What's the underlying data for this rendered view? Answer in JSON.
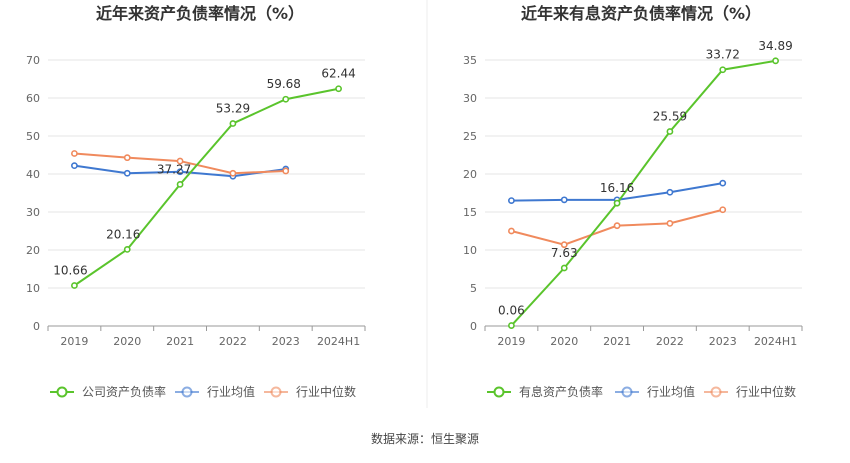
{
  "source": "数据来源：恒生聚源",
  "colors": {
    "primary": "#5ac42c",
    "average": "#3f78d0",
    "median": "#f08a5d",
    "grid": "#e6e6e6",
    "axis": "#999999"
  },
  "chart_data": [
    {
      "type": "line",
      "title": "近年来资产负债率情况（%）",
      "categories": [
        "2019",
        "2020",
        "2021",
        "2022",
        "2023",
        "2024H1"
      ],
      "ylim": [
        0,
        70
      ],
      "yticks": [
        "0",
        "10",
        "20",
        "30",
        "40",
        "50",
        "60",
        "70"
      ],
      "grid": true,
      "legend": "bottom",
      "series": [
        {
          "name": "公司资产负债率",
          "values": [
            10.66,
            20.16,
            37.27,
            53.29,
            59.68,
            62.44
          ],
          "labels": [
            "10.66",
            "20.16",
            "37.27",
            "53.29",
            "59.68",
            "62.44"
          ],
          "key": "primary"
        },
        {
          "name": "行业均值",
          "values": [
            42.2,
            40.2,
            40.6,
            39.4,
            41.3,
            null
          ],
          "key": "average"
        },
        {
          "name": "行业中位数",
          "values": [
            45.4,
            44.3,
            43.4,
            40.2,
            40.8,
            null
          ],
          "key": "median"
        }
      ]
    },
    {
      "type": "line",
      "title": "近年来有息资产负债率情况（%）",
      "categories": [
        "2019",
        "2020",
        "2021",
        "2022",
        "2023",
        "2024H1"
      ],
      "ylim": [
        0,
        35
      ],
      "yticks": [
        "0",
        "5",
        "10",
        "15",
        "20",
        "25",
        "30",
        "35"
      ],
      "grid": true,
      "legend": "bottom",
      "series": [
        {
          "name": "有息资产负债率",
          "values": [
            0.06,
            7.63,
            16.16,
            25.59,
            33.72,
            34.89
          ],
          "labels": [
            "0.06",
            "7.63",
            "16.16",
            "25.59",
            "33.72",
            "34.89"
          ],
          "key": "primary"
        },
        {
          "name": "行业均值",
          "values": [
            16.5,
            16.6,
            16.6,
            17.6,
            18.8,
            null
          ],
          "key": "average"
        },
        {
          "name": "行业中位数",
          "values": [
            12.5,
            10.7,
            13.2,
            13.5,
            15.3,
            null
          ],
          "key": "median"
        }
      ]
    }
  ]
}
